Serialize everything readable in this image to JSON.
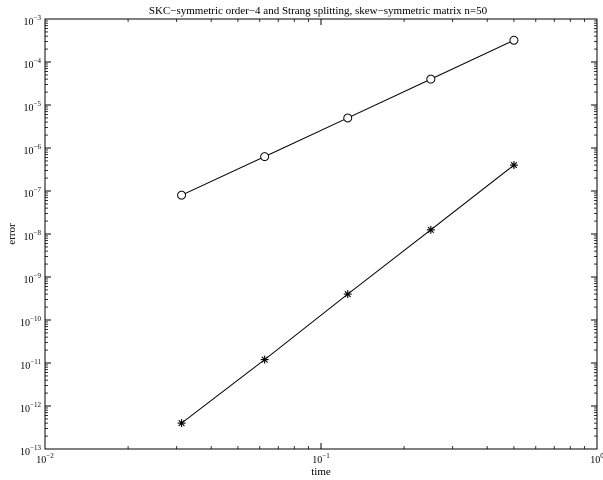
{
  "chart_data": {
    "type": "line",
    "title": "SKC−symmetric order−4 and Strang splitting, skew−symmetric matrix n=50",
    "xlabel": "time",
    "ylabel": "error",
    "x_scale": "log",
    "y_scale": "log",
    "xlim": [
      0.01,
      1
    ],
    "ylim": [
      1e-13,
      0.001
    ],
    "grid": false,
    "x_ticks": [
      {
        "value": 0.01,
        "base": "10",
        "exp": "−2"
      },
      {
        "value": 0.1,
        "base": "10",
        "exp": "−1"
      },
      {
        "value": 1,
        "base": "10",
        "exp": "0"
      }
    ],
    "y_ticks": [
      {
        "value": 0.001,
        "base": "10",
        "exp": "−3"
      },
      {
        "value": 0.0001,
        "base": "10",
        "exp": "−4"
      },
      {
        "value": 1e-05,
        "base": "10",
        "exp": "−5"
      },
      {
        "value": 1e-06,
        "base": "10",
        "exp": "−6"
      },
      {
        "value": 1e-07,
        "base": "10",
        "exp": "−7"
      },
      {
        "value": 1e-08,
        "base": "10",
        "exp": "−8"
      },
      {
        "value": 1e-09,
        "base": "10",
        "exp": "−9"
      },
      {
        "value": 1e-10,
        "base": "10",
        "exp": "−10"
      },
      {
        "value": 1e-11,
        "base": "10",
        "exp": "−11"
      },
      {
        "value": 1e-12,
        "base": "10",
        "exp": "−12"
      },
      {
        "value": 1e-13,
        "base": "10",
        "exp": "−13"
      }
    ],
    "series": [
      {
        "marker": "circle",
        "color": "#000000",
        "x": [
          0.03125,
          0.0625,
          0.125,
          0.25,
          0.5
        ],
        "y": [
          8e-08,
          6.3e-07,
          5e-06,
          4e-05,
          0.00032
        ]
      },
      {
        "marker": "asterisk",
        "color": "#000000",
        "x": [
          0.03125,
          0.0625,
          0.125,
          0.25,
          0.5
        ],
        "y": [
          4e-13,
          1.2e-11,
          4e-10,
          1.25e-08,
          4e-07
        ]
      }
    ]
  }
}
